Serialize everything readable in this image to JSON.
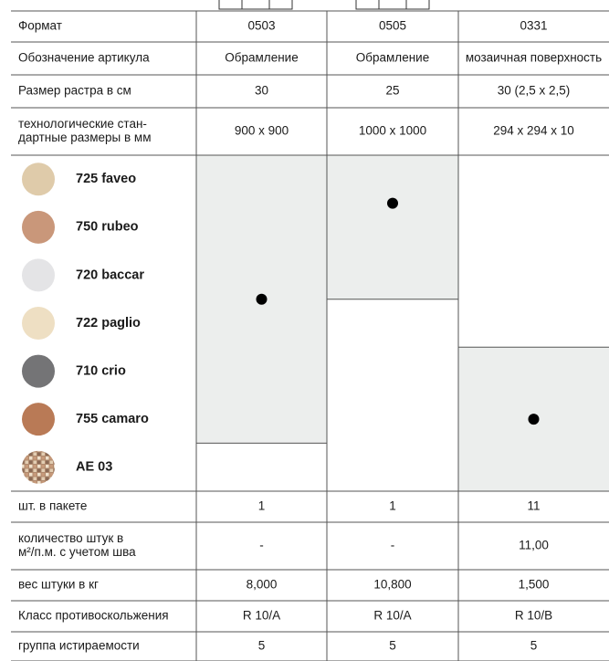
{
  "table": {
    "header": [
      "Формат",
      "0503",
      "0505",
      "0331"
    ],
    "top_rows": [
      [
        "Обозначение артикула",
        "Обрамление",
        "Обрамление",
        "мозаичная поверхность"
      ],
      [
        "Размер растра в см",
        "30",
        "25",
        "30 (2,5 x 2,5)"
      ],
      [
        [
          "технологические стан-",
          "дартные размеры в мм"
        ],
        "900 x 900",
        "1000 x 1000",
        "294 x 294 x 10"
      ]
    ],
    "colors": [
      {
        "name": "725 faveo",
        "swatch": "#dfcbaa"
      },
      {
        "name": "750 rubeo",
        "swatch": "#c9977a"
      },
      {
        "name": "720 baccar",
        "swatch": "#e4e4e6"
      },
      {
        "name": "722 paglio",
        "swatch": "#eedfc3"
      },
      {
        "name": "710 crio",
        "swatch": "#747476"
      },
      {
        "name": "755 camaro",
        "swatch": "#b97a56"
      },
      {
        "name": "AE 03",
        "swatch": "mosaic"
      }
    ],
    "bottom_rows": [
      [
        "шт. в пакете",
        "1",
        "1",
        "11"
      ],
      [
        [
          "количество штук в",
          "м²/п.м. с учетом шва"
        ],
        "-",
        "-",
        "11,00"
      ],
      [
        "вес штуки в кг",
        "8,000",
        "10,800",
        "1,500"
      ],
      [
        "Класс противоскольжения",
        "R 10/A",
        "R 10/A",
        "R 10/B"
      ],
      [
        "группа истираемости",
        "5",
        "5",
        "5"
      ]
    ]
  }
}
